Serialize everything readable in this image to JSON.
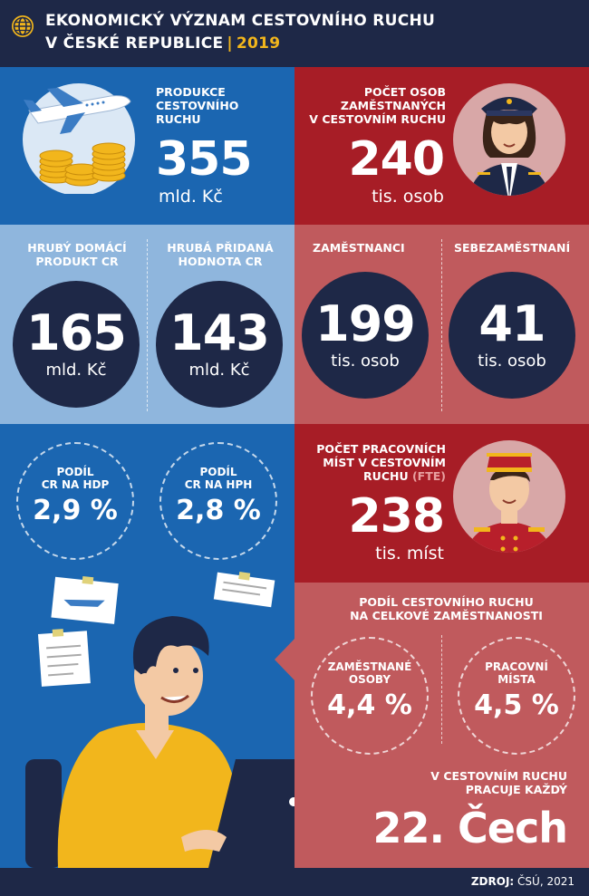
{
  "header": {
    "title_line1": "EKONOMICKÝ VÝZNAM CESTOVNÍHO RUCHU",
    "title_line2": "V ČESKÉ REPUBLICE",
    "year": "2019",
    "icon": "globe-icon"
  },
  "production": {
    "label_l1": "PRODUKCE",
    "label_l2": "CESTOVNÍHO",
    "label_l3": "RUCHU",
    "value": "355",
    "unit": "mld. Kč"
  },
  "employed": {
    "label_l1": "POČET OSOB",
    "label_l2": "ZAMĚSTNANÝCH",
    "label_l3": "V CESTOVNÍM RUCHU",
    "value": "240",
    "unit": "tis. osob"
  },
  "gdp": {
    "label_l1": "HRUBÝ DOMÁCÍ",
    "label_l2": "PRODUKT CR",
    "value": "165",
    "unit": "mld. Kč"
  },
  "gva": {
    "label_l1": "HRUBÁ PŘIDANÁ",
    "label_l2": "HODNOTA CR",
    "value": "143",
    "unit": "mld. Kč"
  },
  "employees": {
    "label": "ZAMĚSTNANCI",
    "value": "199",
    "unit": "tis. osob"
  },
  "selfemployed": {
    "label": "SEBEZAMĚSTNANÍ",
    "value": "41",
    "unit": "tis. osob"
  },
  "share_gdp": {
    "label_l1": "PODÍL",
    "label_l2": "CR NA HDP",
    "value": "2,9 %"
  },
  "share_gva": {
    "label_l1": "PODÍL",
    "label_l2": "CR NA HPH",
    "value": "2,8 %"
  },
  "jobs": {
    "label_l1": "POČET PRACOVNÍCH",
    "label_l2": "MÍST V CESTOVNÍM",
    "label_l3": "RUCHU",
    "label_fte": "(FTE)",
    "value": "238",
    "unit": "tis. míst"
  },
  "employment_share": {
    "title_l1": "PODÍL CESTOVNÍHO RUCHU",
    "title_l2": "NA CELKOVÉ ZAMĚSTNANOSTI",
    "persons_l1": "ZAMĚSTNANÉ",
    "persons_l2": "OSOBY",
    "persons_value": "4,4 %",
    "places_l1": "PRACOVNÍ",
    "places_l2": "MÍSTA",
    "places_value": "4,5 %"
  },
  "every": {
    "text_l1": "V CESTOVNÍM RUCHU",
    "text_l2": "PRACUJE KAŽDÝ",
    "value": "22. Čech"
  },
  "footer": {
    "source_label": "ZDROJ:",
    "source_value": "ČSÚ, 2021"
  },
  "colors": {
    "navy": "#1e2847",
    "blue": "#1b66b1",
    "light_blue": "#8fb6dd",
    "red": "#a71d26",
    "rose": "#c05a5d",
    "accent_yellow": "#f2b61c",
    "fte": "#e8a0a0"
  }
}
